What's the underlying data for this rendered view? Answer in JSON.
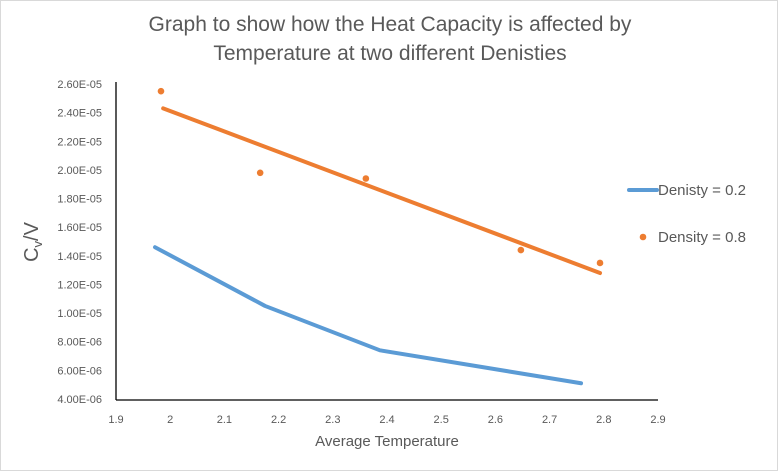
{
  "chart_data": {
    "type": "line",
    "title": "Graph to show how the Heat Capacity is affected by Temperature at two different Denisties",
    "title_lines": [
      "Graph to show how the Heat Capacity is affected by",
      "Temperature at two different Denisties"
    ],
    "xlabel": "Average Temperature",
    "ylabel": "Cv/V",
    "ylabel_main": "C",
    "ylabel_sub": "v",
    "ylabel_tail": "/V",
    "xlim": [
      1.9,
      2.9
    ],
    "ylim": [
      4e-06,
      2.6e-05
    ],
    "x_ticks": [
      "1.9",
      "2",
      "2.1",
      "2.2",
      "2.3",
      "2.4",
      "2.5",
      "2.6",
      "2.7",
      "2.8",
      "2.9"
    ],
    "x_tick_values": [
      1.9,
      2.0,
      2.1,
      2.2,
      2.3,
      2.4,
      2.5,
      2.6,
      2.7,
      2.8,
      2.9
    ],
    "y_ticks": [
      "4.00E-06",
      "6.00E-06",
      "8.00E-06",
      "1.00E-05",
      "1.20E-05",
      "1.40E-05",
      "1.60E-05",
      "1.80E-05",
      "2.00E-05",
      "2.20E-05",
      "2.40E-05",
      "2.60E-05"
    ],
    "y_tick_values": [
      4e-06,
      6e-06,
      8e-06,
      1e-05,
      1.2e-05,
      1.4e-05,
      1.6e-05,
      1.8e-05,
      2e-05,
      2.2e-05,
      2.4e-05,
      2.6e-05
    ],
    "grid": false,
    "legend_position": "right",
    "series": [
      {
        "name": "Denisty = 0.2",
        "kind": "line",
        "color": "#5b9bd5",
        "x": [
          1.972,
          2.175,
          2.387,
          2.758
        ],
        "y": [
          1.46e-05,
          1.05e-05,
          7.4e-06,
          5.1e-06
        ]
      },
      {
        "name": "Density = 0.8",
        "kind": "scatter",
        "color": "#ed7d31",
        "x": [
          1.983,
          2.166,
          2.361,
          2.647,
          2.793
        ],
        "y": [
          2.55e-05,
          1.98e-05,
          1.94e-05,
          1.44e-05,
          1.35e-05
        ],
        "trendline": {
          "type": "linear",
          "x": [
            1.987,
            2.793
          ],
          "y": [
            2.43e-05,
            1.28e-05
          ]
        }
      }
    ]
  }
}
